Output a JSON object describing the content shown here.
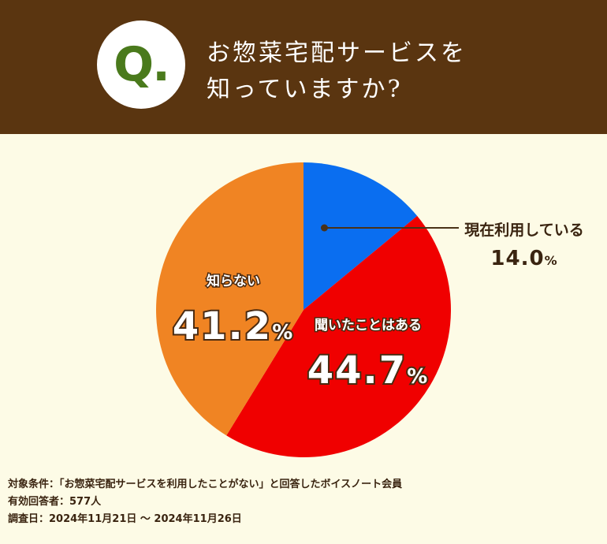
{
  "header": {
    "badge": "Q.",
    "question_line1": "お惣菜宅配サービスを",
    "question_line2": "知っていますか?",
    "bg_color": "#5a3510",
    "badge_color": "#4a7a1c"
  },
  "chart_data": {
    "type": "pie",
    "title": "お惣菜宅配サービスを知っていますか?",
    "slices": [
      {
        "label": "現在利用している",
        "value": 14.0,
        "value_text": "14.0",
        "unit": "%",
        "color": "#0a6ef0"
      },
      {
        "label": "聞いたことはある",
        "value": 44.7,
        "value_text": "44.7",
        "unit": "%",
        "color": "#f00000"
      },
      {
        "label": "知らない",
        "value": 41.2,
        "value_text": "41.2",
        "unit": "%",
        "color": "#f08423"
      }
    ],
    "start": "12 o'clock",
    "direction": "clockwise"
  },
  "footnotes": {
    "line1": "対象条件：「お惣菜宅配サービスを利用したことがない」と回答したボイスノート会員",
    "line2": "有効回答者：577人",
    "line3": "調査日：2024年11月21日 〜 2024年11月26日"
  }
}
